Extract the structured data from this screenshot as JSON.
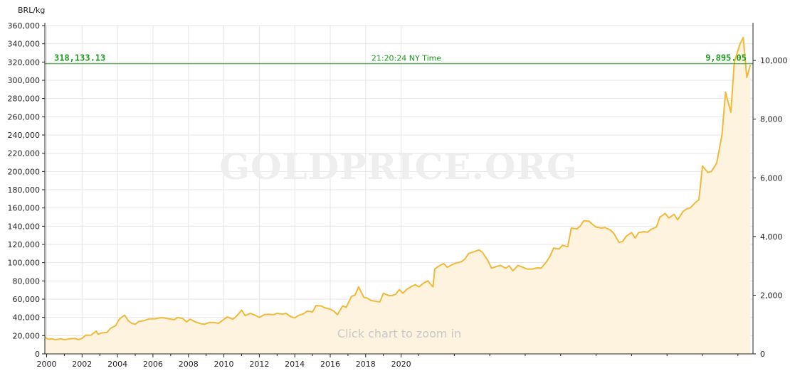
{
  "colors": {
    "line": "#f0b93a",
    "fill": "#fdf3df",
    "current": "#1a9a1a",
    "grid": "#e6e6e6",
    "axis": "#222222"
  },
  "watermark": "GOLDPRICE.ORG",
  "zoom_hint": "Click chart to zoom in",
  "current": {
    "left_price": "318,133.13",
    "time": "21:20:24 NY Time",
    "right_price": "9,895.05"
  },
  "chart_data": {
    "type": "area",
    "unit_label": "BRL/kg",
    "x_ticks": [
      "2000",
      "2002",
      "2004",
      "2006",
      "2008",
      "2010",
      "2012",
      "2014",
      "2016",
      "2018",
      "2020"
    ],
    "y_left_ticks": [
      "0",
      "20,000",
      "40,000",
      "60,000",
      "80,000",
      "100,000",
      "120,000",
      "140,000",
      "160,000",
      "180,000",
      "200,000",
      "220,000",
      "240,000",
      "260,000",
      "280,000",
      "300,000",
      "320,000",
      "340,000",
      "360,000"
    ],
    "y_right_ticks": [
      "0",
      "2,000",
      "4,000",
      "6,000",
      "8,000",
      "10,000"
    ],
    "ylim_left": [
      0,
      360000
    ],
    "ylim_right": [
      0,
      11190
    ],
    "current_value": 318133.13,
    "series": [
      {
        "values": [
          [
            1999.9,
            18500
          ],
          [
            2000.0,
            17000
          ],
          [
            2000.1,
            16000
          ],
          [
            2000.3,
            16500
          ],
          [
            2000.5,
            15500
          ],
          [
            2000.8,
            16500
          ],
          [
            2001.0,
            15500
          ],
          [
            2001.3,
            16500
          ],
          [
            2001.6,
            17000
          ],
          [
            2001.8,
            15500
          ],
          [
            2002.0,
            17000
          ],
          [
            2002.2,
            20500
          ],
          [
            2002.5,
            20500
          ],
          [
            2002.8,
            25000
          ],
          [
            2002.9,
            21500
          ],
          [
            2003.1,
            23000
          ],
          [
            2003.4,
            23500
          ],
          [
            2003.6,
            28000
          ],
          [
            2003.9,
            31000
          ],
          [
            2004.1,
            38000
          ],
          [
            2004.4,
            42500
          ],
          [
            2004.6,
            36500
          ],
          [
            2004.8,
            33500
          ],
          [
            2005.0,
            32500
          ],
          [
            2005.2,
            35500
          ],
          [
            2005.5,
            36500
          ],
          [
            2005.8,
            38500
          ],
          [
            2006.1,
            38500
          ],
          [
            2006.4,
            39500
          ],
          [
            2006.6,
            39500
          ],
          [
            2006.9,
            38500
          ],
          [
            2007.2,
            37500
          ],
          [
            2007.4,
            40000
          ],
          [
            2007.7,
            38500
          ],
          [
            2007.9,
            35000
          ],
          [
            2008.1,
            38000
          ],
          [
            2008.4,
            35000
          ],
          [
            2008.7,
            33000
          ],
          [
            2008.9,
            32500
          ],
          [
            2009.2,
            34500
          ],
          [
            2009.4,
            34500
          ],
          [
            2009.7,
            33500
          ],
          [
            2009.9,
            36500
          ],
          [
            2010.2,
            40500
          ],
          [
            2010.5,
            38000
          ],
          [
            2010.7,
            41000
          ],
          [
            2011.0,
            48000
          ],
          [
            2011.2,
            42000
          ],
          [
            2011.5,
            44500
          ],
          [
            2011.8,
            42000
          ],
          [
            2012.0,
            40000
          ],
          [
            2012.3,
            43000
          ],
          [
            2012.5,
            43500
          ],
          [
            2012.8,
            43000
          ],
          [
            2013.0,
            44500
          ],
          [
            2013.3,
            43500
          ],
          [
            2013.5,
            44500
          ],
          [
            2013.8,
            40500
          ],
          [
            2014.0,
            39500
          ],
          [
            2014.2,
            42000
          ],
          [
            2014.5,
            44000
          ],
          [
            2014.7,
            47000
          ],
          [
            2015.0,
            46000
          ],
          [
            2015.2,
            53000
          ],
          [
            2015.5,
            52500
          ],
          [
            2015.7,
            50500
          ],
          [
            2016.0,
            49000
          ],
          [
            2016.2,
            47000
          ],
          [
            2016.4,
            43000
          ],
          [
            2016.7,
            52500
          ],
          [
            2016.9,
            51000
          ],
          [
            2017.2,
            63000
          ],
          [
            2017.4,
            64500
          ],
          [
            2017.6,
            73500
          ],
          [
            2017.9,
            62000
          ],
          [
            2018.1,
            61000
          ],
          [
            2018.3,
            58500
          ],
          [
            2018.6,
            57500
          ],
          [
            2018.8,
            57000
          ],
          [
            2019.0,
            66500
          ],
          [
            2019.3,
            64000
          ],
          [
            2019.5,
            64000
          ],
          [
            2019.7,
            65500
          ],
          [
            2019.9,
            70500
          ],
          [
            2020.1,
            66500
          ],
          [
            2020.3,
            70500
          ],
          [
            2020.6,
            74000
          ],
          [
            2020.8,
            76000
          ],
          [
            2021.0,
            73500
          ],
          [
            2021.3,
            78000
          ],
          [
            2021.5,
            80000
          ],
          [
            2021.8,
            73500
          ],
          [
            2021.9,
            93000
          ],
          [
            2022.1,
            96000
          ],
          [
            2022.4,
            99000
          ],
          [
            2022.6,
            95000
          ],
          [
            2022.9,
            98000
          ],
          [
            2023.1,
            99500
          ],
          [
            2023.4,
            101000
          ],
          [
            2023.6,
            104000
          ],
          [
            2023.8,
            110000
          ],
          [
            2024.1,
            112000
          ],
          [
            2024.4,
            114000
          ],
          [
            2024.6,
            111000
          ],
          [
            2024.9,
            102000
          ],
          [
            2025.1,
            94000
          ],
          [
            2025.4,
            96000
          ],
          [
            2025.6,
            97000
          ],
          [
            2025.9,
            94000
          ],
          [
            2026.1,
            96500
          ],
          [
            2026.3,
            91000
          ],
          [
            2026.6,
            97000
          ],
          [
            2026.8,
            95500
          ],
          [
            2027.1,
            93000
          ],
          [
            2027.4,
            93000
          ],
          [
            2027.7,
            94500
          ],
          [
            2027.9,
            94000
          ],
          [
            2028.2,
            101000
          ],
          [
            2028.4,
            107000
          ],
          [
            2028.6,
            116000
          ],
          [
            2028.9,
            115000
          ],
          [
            2029.1,
            119000
          ],
          [
            2029.4,
            117500
          ],
          [
            2029.6,
            138000
          ],
          [
            2029.9,
            137000
          ],
          [
            2030.1,
            140000
          ],
          [
            2030.3,
            146000
          ],
          [
            2030.6,
            145500
          ],
          [
            2030.8,
            142000
          ],
          [
            2031.0,
            139000
          ],
          [
            2031.3,
            138000
          ],
          [
            2031.5,
            138500
          ],
          [
            2031.8,
            136000
          ],
          [
            2032.0,
            132000
          ],
          [
            2032.3,
            122000
          ],
          [
            2032.5,
            123500
          ],
          [
            2032.7,
            129000
          ],
          [
            2033.0,
            133000
          ],
          [
            2033.2,
            127000
          ],
          [
            2033.4,
            133000
          ],
          [
            2033.7,
            134000
          ],
          [
            2033.9,
            133500
          ],
          [
            2034.1,
            136500
          ],
          [
            2034.4,
            139000
          ],
          [
            2034.6,
            150000
          ],
          [
            2034.9,
            154000
          ],
          [
            2035.1,
            149000
          ],
          [
            2035.4,
            153000
          ],
          [
            2035.6,
            147000
          ],
          [
            2035.9,
            156000
          ],
          [
            2036.1,
            159000
          ],
          [
            2036.3,
            160000
          ],
          [
            2036.6,
            166000
          ],
          [
            2036.8,
            169000
          ],
          [
            2037.0,
            206000
          ],
          [
            2037.3,
            199000
          ],
          [
            2037.5,
            200000
          ],
          [
            2037.8,
            209000
          ],
          [
            2038.1,
            240000
          ],
          [
            2038.3,
            287000
          ],
          [
            2038.6,
            265000
          ],
          [
            2038.8,
            320000
          ],
          [
            2039.1,
            339000
          ],
          [
            2039.3,
            347000
          ],
          [
            2039.5,
            303000
          ],
          [
            2039.7,
            317000
          ]
        ]
      }
    ]
  }
}
